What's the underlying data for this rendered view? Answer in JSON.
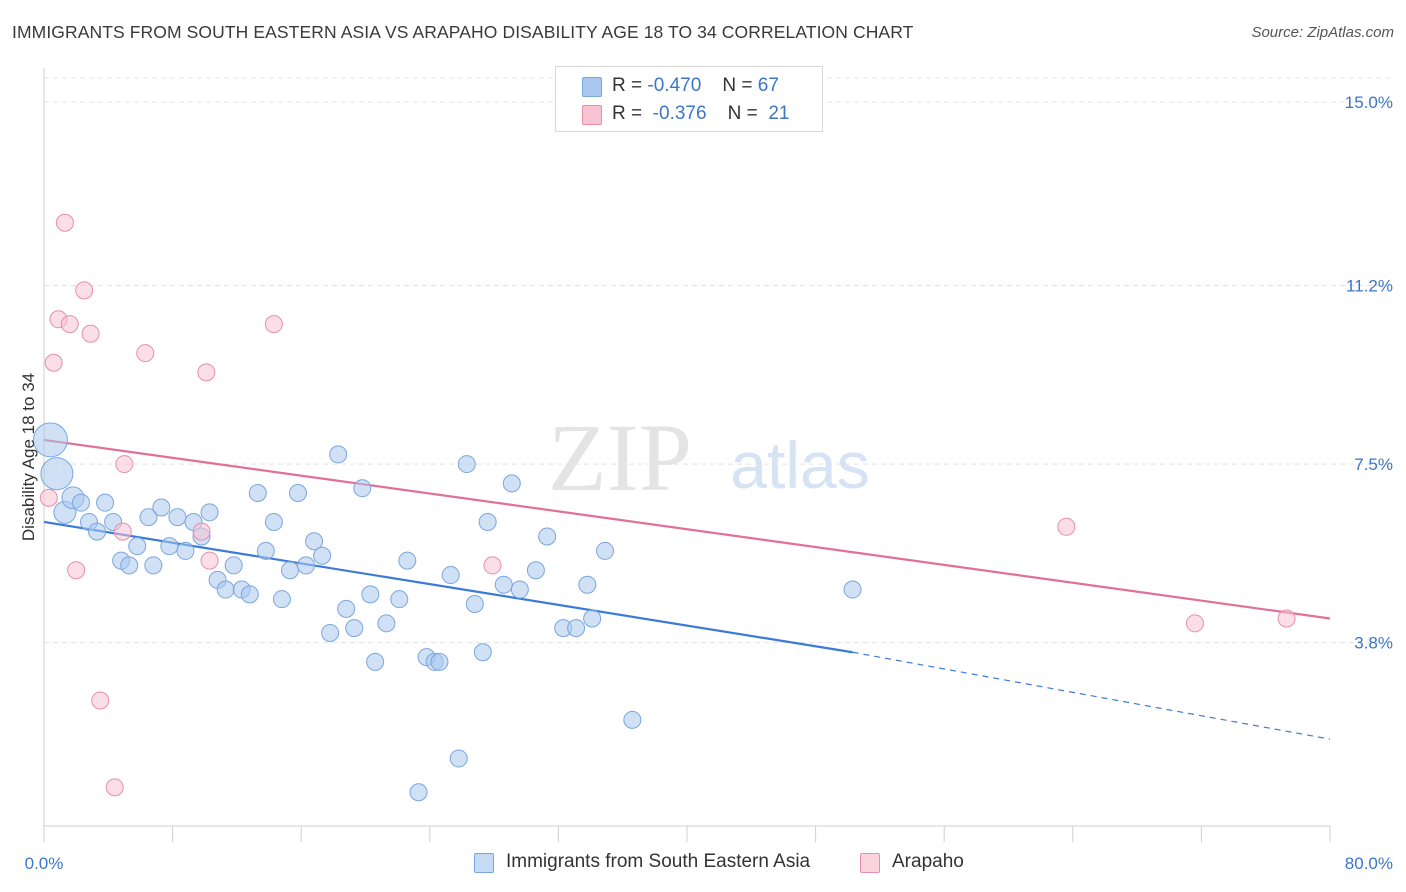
{
  "title": "IMMIGRANTS FROM SOUTH EASTERN ASIA VS ARAPAHO DISABILITY AGE 18 TO 34 CORRELATION CHART",
  "source": "Source: ZipAtlas.com",
  "watermark": {
    "zip": "ZIP",
    "atlas": "atlas"
  },
  "legend": {
    "rows": [
      {
        "r_label": "R =",
        "r_value": "-0.470",
        "n_label": "N =",
        "n_value": "67",
        "color": "#a9c8ef",
        "border": "#7aa6df"
      },
      {
        "r_label": "R =",
        "r_value": "-0.376",
        "n_label": "N =",
        "n_value": "21",
        "color": "#f7c3d3",
        "border": "#e78fab"
      }
    ]
  },
  "bottom_legend": [
    {
      "label": "Immigrants from South Eastern Asia",
      "color": "#c5dbf5",
      "border": "#7aa6df"
    },
    {
      "label": "Arapaho",
      "color": "#fbd3df",
      "border": "#e78fab"
    }
  ],
  "chart_data": {
    "type": "scatter",
    "title": "IMMIGRANTS FROM SOUTH EASTERN ASIA VS ARAPAHO DISABILITY AGE 18 TO 34 CORRELATION CHART",
    "xlabel": "",
    "ylabel": "Disability Age 18 to 34",
    "xlim": [
      0,
      80
    ],
    "ylim": [
      0,
      15.5
    ],
    "x_tick_labels": [
      "0.0%",
      "80.0%"
    ],
    "y_ticks": [
      3.8,
      7.5,
      11.2,
      15.0
    ],
    "y_tick_labels": [
      "3.8%",
      "7.5%",
      "11.2%",
      "15.0%"
    ],
    "grid": true,
    "colors": {
      "blue": "#3b7ad6",
      "pink": "#e0709a",
      "tick_text": "#3b76c8"
    },
    "series": [
      {
        "name": "Immigrants from South Eastern Asia",
        "points": [
          [
            0.4,
            8.0
          ],
          [
            0.8,
            7.3
          ],
          [
            1.3,
            6.5
          ],
          [
            1.8,
            6.8
          ],
          [
            2.3,
            6.7
          ],
          [
            2.8,
            6.3
          ],
          [
            3.3,
            6.1
          ],
          [
            3.8,
            6.7
          ],
          [
            4.3,
            6.3
          ],
          [
            4.8,
            5.5
          ],
          [
            5.3,
            5.4
          ],
          [
            5.8,
            5.8
          ],
          [
            6.5,
            6.4
          ],
          [
            6.8,
            5.4
          ],
          [
            7.3,
            6.6
          ],
          [
            7.8,
            5.8
          ],
          [
            8.3,
            6.4
          ],
          [
            8.8,
            5.7
          ],
          [
            9.3,
            6.3
          ],
          [
            9.8,
            6.0
          ],
          [
            10.3,
            6.5
          ],
          [
            10.8,
            5.1
          ],
          [
            11.3,
            4.9
          ],
          [
            11.8,
            5.4
          ],
          [
            12.3,
            4.9
          ],
          [
            12.8,
            4.8
          ],
          [
            13.3,
            6.9
          ],
          [
            13.8,
            5.7
          ],
          [
            14.3,
            6.3
          ],
          [
            14.8,
            4.7
          ],
          [
            15.3,
            5.3
          ],
          [
            15.8,
            6.9
          ],
          [
            16.3,
            5.4
          ],
          [
            16.8,
            5.9
          ],
          [
            17.3,
            5.6
          ],
          [
            17.8,
            4.0
          ],
          [
            18.3,
            7.7
          ],
          [
            18.8,
            4.5
          ],
          [
            19.3,
            4.1
          ],
          [
            19.8,
            7.0
          ],
          [
            20.3,
            4.8
          ],
          [
            20.6,
            3.4
          ],
          [
            21.3,
            4.2
          ],
          [
            22.1,
            4.7
          ],
          [
            22.6,
            5.5
          ],
          [
            23.3,
            0.7
          ],
          [
            23.8,
            3.5
          ],
          [
            24.3,
            3.4
          ],
          [
            24.6,
            3.4
          ],
          [
            25.3,
            5.2
          ],
          [
            25.8,
            1.4
          ],
          [
            26.3,
            7.5
          ],
          [
            26.8,
            4.6
          ],
          [
            27.3,
            3.6
          ],
          [
            27.6,
            6.3
          ],
          [
            28.6,
            5.0
          ],
          [
            29.1,
            7.1
          ],
          [
            29.6,
            4.9
          ],
          [
            30.6,
            5.3
          ],
          [
            31.3,
            6.0
          ],
          [
            32.3,
            4.1
          ],
          [
            33.1,
            4.1
          ],
          [
            33.8,
            5.0
          ],
          [
            34.1,
            4.3
          ],
          [
            34.9,
            5.7
          ],
          [
            36.6,
            2.2
          ],
          [
            50.3,
            4.9
          ]
        ],
        "trend": {
          "x": [
            0,
            50.3,
            80
          ],
          "y": [
            6.3,
            3.6,
            1.8
          ],
          "solid_until": 50.3
        }
      },
      {
        "name": "Arapaho",
        "points": [
          [
            0.3,
            6.8
          ],
          [
            0.6,
            9.6
          ],
          [
            0.9,
            10.5
          ],
          [
            1.3,
            12.5
          ],
          [
            1.6,
            10.4
          ],
          [
            2.0,
            5.3
          ],
          [
            2.5,
            11.1
          ],
          [
            2.9,
            10.2
          ],
          [
            3.5,
            2.6
          ],
          [
            4.4,
            0.8
          ],
          [
            4.9,
            6.1
          ],
          [
            5.0,
            7.5
          ],
          [
            6.3,
            9.8
          ],
          [
            9.8,
            6.1
          ],
          [
            10.1,
            9.4
          ],
          [
            10.3,
            5.5
          ],
          [
            14.3,
            10.4
          ],
          [
            27.9,
            5.4
          ],
          [
            63.6,
            6.2
          ],
          [
            71.6,
            4.2
          ],
          [
            77.3,
            4.3
          ]
        ],
        "trend": {
          "x": [
            0,
            80
          ],
          "y": [
            8.0,
            4.3
          ]
        }
      }
    ]
  }
}
